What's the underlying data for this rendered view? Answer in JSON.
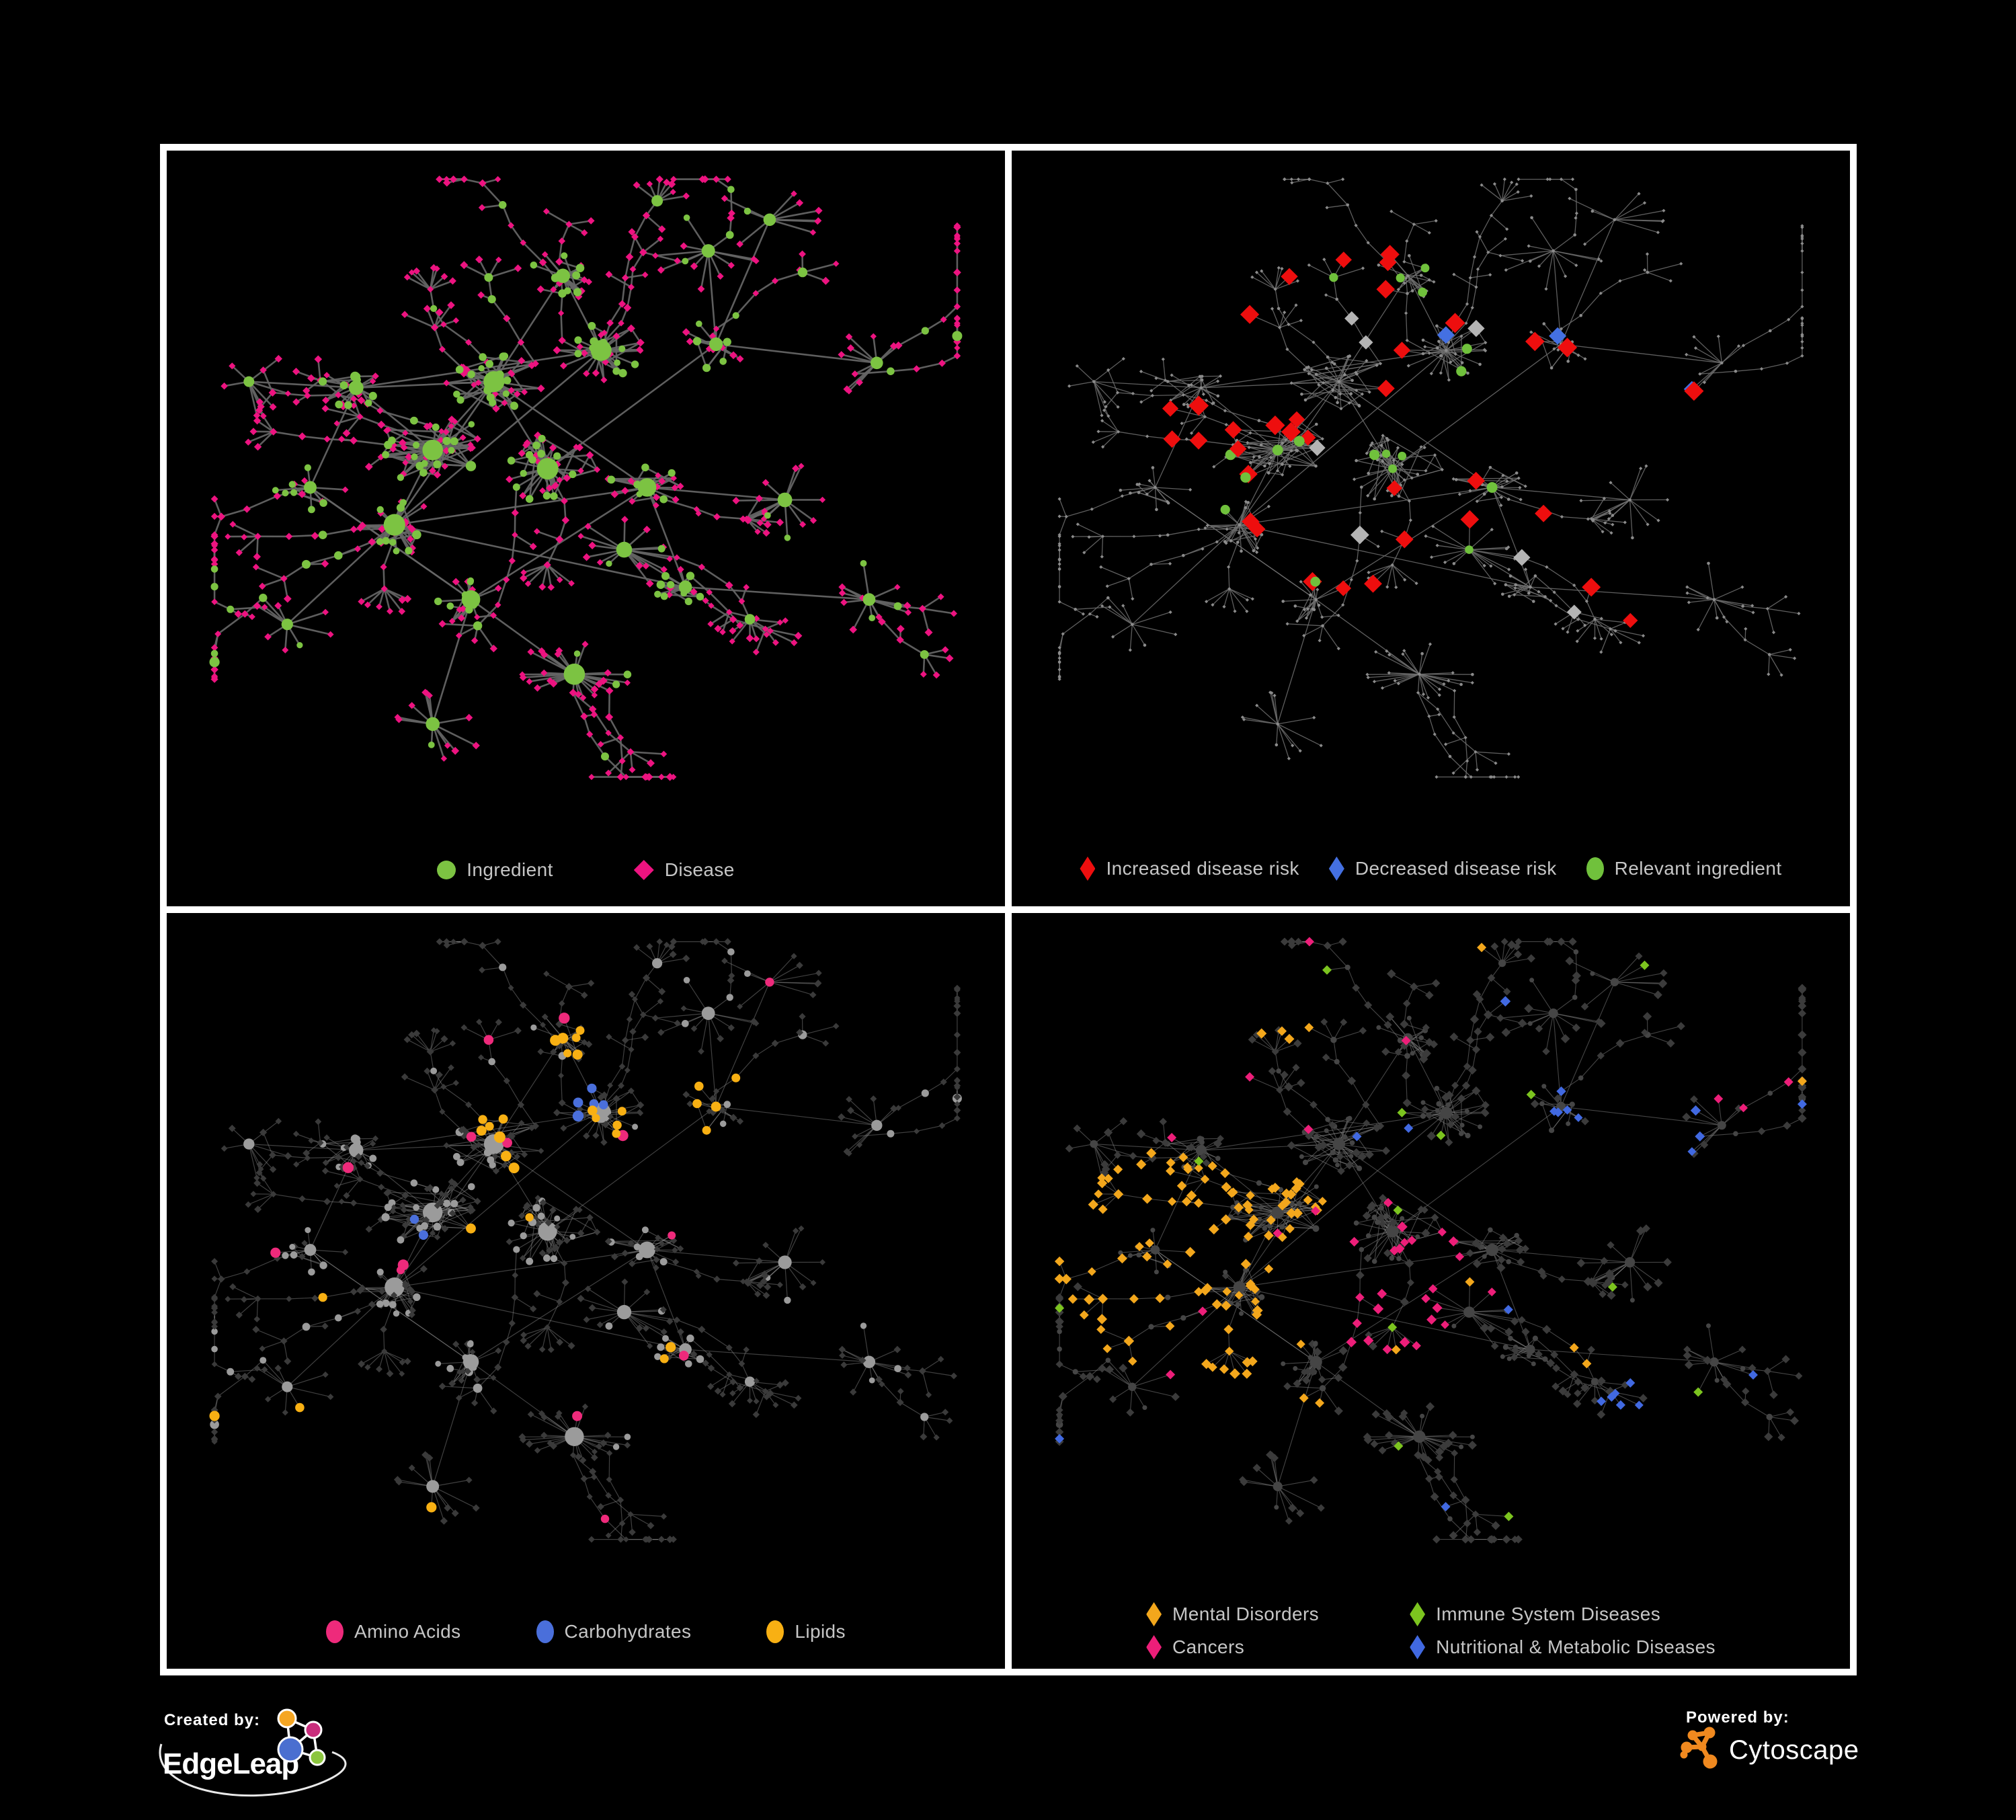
{
  "canvas": {
    "background": "#000000",
    "frame_color": "#ffffff"
  },
  "panels": [
    {
      "name": "ingredient-disease-network",
      "legend": [
        {
          "label": "Ingredient",
          "shape": "circle",
          "color": "#7cc342"
        },
        {
          "label": "Disease",
          "shape": "diamond",
          "color": "#ed1380"
        }
      ],
      "style": {
        "edge_color": "#666666",
        "edge_width": 2.6,
        "edge_opacity": 0.92,
        "ingredient_color": "#7cc342",
        "disease_color": "#ed1380"
      }
    },
    {
      "name": "disease-risk-network",
      "legend": [
        {
          "label": "Increased disease risk",
          "shape": "diamond-tall",
          "color": "#ee0e0e"
        },
        {
          "label": "Decreased disease risk",
          "shape": "diamond-tall",
          "color": "#4470e2"
        },
        {
          "label": "Relevant ingredient",
          "shape": "ellipse",
          "color": "#70c13c"
        }
      ],
      "style": {
        "edge_color": "#6f6f6f",
        "edge_width": 1.3,
        "edge_opacity": 0.85,
        "base_color": "#8b8b8b",
        "increased_color": "#ee0e0e",
        "decreased_color": "#4470e2",
        "neutral_color": "#b4b4b4",
        "relevant_color": "#70c13c"
      }
    },
    {
      "name": "ingredient-class-network",
      "legend": [
        {
          "label": "Amino Acids",
          "shape": "ellipse",
          "color": "#ee2a7b"
        },
        {
          "label": "Carbohydrates",
          "shape": "ellipse",
          "color": "#4a6fdb"
        },
        {
          "label": "Lipids",
          "shape": "ellipse",
          "color": "#f8b013"
        }
      ],
      "style": {
        "edge_color": "#8d8d8d",
        "edge_width": 1.2,
        "edge_opacity": 0.45,
        "ingredient_color": "#9b9b9b",
        "disease_color": "#3a3a3a",
        "amino_color": "#ee2a7b",
        "carb_color": "#4a6fdb",
        "lipid_color": "#f8b013"
      }
    },
    {
      "name": "disease-class-network",
      "legend": [
        {
          "label": "Mental Disorders",
          "shape": "diamond-tall",
          "color": "#f3a71c"
        },
        {
          "label": "Immune System Diseases",
          "shape": "diamond-tall",
          "color": "#7cc41f"
        },
        {
          "label": "Cancers",
          "shape": "diamond-tall",
          "color": "#ed1e79"
        },
        {
          "label": "Nutritional & Metabolic Diseases",
          "shape": "diamond-tall",
          "color": "#4169e1"
        }
      ],
      "legend_layout": "two-column",
      "style": {
        "edge_color": "#8a8a8a",
        "edge_width": 1.1,
        "edge_opacity": 0.5,
        "ingredient_color": "#454545",
        "disease_color": "#3b3b3b",
        "mental_color": "#f3a71c",
        "immune_color": "#7cc41f",
        "cancer_color": "#ed1e79",
        "nutritional_color": "#4169e1"
      }
    }
  ],
  "footer": {
    "created_by_label": "Created by:",
    "edgeleap_brand": "EdgeLeap",
    "powered_by_label": "Powered by:",
    "cytoscape_brand": "Cytoscape",
    "edgeleap_node_colors": [
      "#f5a623",
      "#c92d7c",
      "#4a6fd0",
      "#8cc63f"
    ],
    "cytoscape_icon_color": "#f0891f"
  },
  "network_summary": {
    "type": "network",
    "panel_1": "Ingredient-disease association network: green circular ingredient nodes sized by connectivity, pink diamond disease nodes, gray edges",
    "panel_2": "Same network dimmed to tiny gray nodes; highlighted diamonds mark increased (red), decreased (blue) or neutral (gray) disease risk and green circles mark relevant ingredients",
    "panel_3": "Ingredient nodes shown as circles colored by chemical class (pink amino acids, blue carbohydrates, orange lipids, gray other); disease nodes dimmed dark diamonds",
    "panel_4": "Disease nodes shown as diamonds colored by class (orange mental disorders, green immune system diseases, pink cancers, blue nutritional and metabolic diseases); other nodes dark gray"
  }
}
